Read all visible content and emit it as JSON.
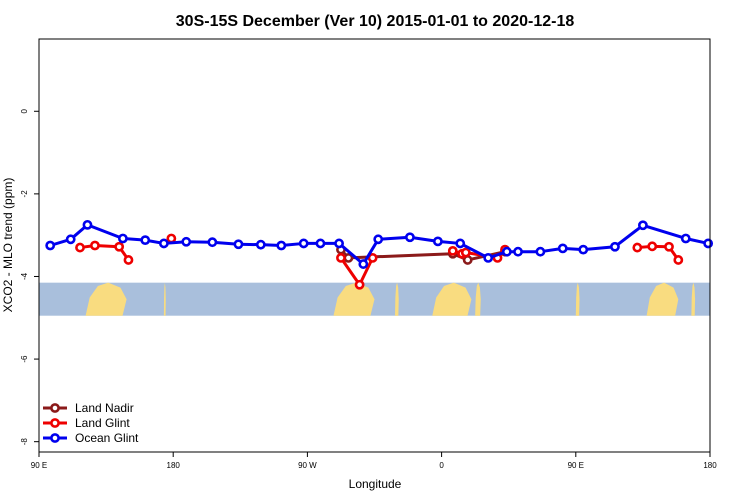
{
  "chart_data": {
    "type": "line",
    "title": "30S-15S December (Ver 10)   2015-01-01 to 2020-12-18",
    "xlabel": "Longitude",
    "ylabel": "XCO2 - MLO trend (ppm)",
    "xlim": [
      90,
      450
    ],
    "ylim": [
      -8.25,
      1.75
    ],
    "x_ticks": [
      90,
      162,
      234,
      306,
      378,
      450
    ],
    "x_tick_labels": [
      "90 E",
      "180",
      "90 W",
      "0",
      "90 E",
      "180"
    ],
    "y_ticks": [
      0,
      -2,
      -4,
      -6,
      -8
    ],
    "y_tick_labels": [
      "0",
      "-2",
      "-4",
      "-6",
      "-8"
    ],
    "grid": false,
    "legend_position": "bottom-left",
    "map_band": {
      "y_range": [
        -4.15,
        -4.95
      ],
      "ocean_color": "#a9bfdc",
      "land_color": "#f9dc80"
    },
    "series": [
      {
        "name": "Land Nadir",
        "color": "#8b1a1a",
        "x": [
          252,
          256,
          312,
          320,
          340
        ],
        "y": [
          -3.35,
          -3.55,
          -3.45,
          -3.6,
          -3.4
        ]
      },
      {
        "name": "Land Glint",
        "color": "#ee0000",
        "segments": [
          {
            "x": [
              112,
              120,
              133,
              138
            ],
            "y": [
              -3.3,
              -3.25,
              -3.28,
              -3.6
            ]
          },
          {
            "x": [
              161
            ],
            "y": [
              -3.08
            ]
          },
          {
            "x": [
              252,
              262,
              269
            ],
            "y": [
              -3.55,
              -4.2,
              -3.55
            ]
          },
          {
            "x": [
              312,
              317,
              319,
              336,
              340
            ],
            "y": [
              -3.38,
              -3.45,
              -3.42,
              -3.55,
              -3.35
            ]
          },
          {
            "x": [
              411,
              419,
              428,
              433
            ],
            "y": [
              -3.3,
              -3.27,
              -3.28,
              -3.6
            ]
          }
        ]
      },
      {
        "name": "Ocean Glint",
        "color": "#0000ee",
        "x": [
          96,
          107,
          116,
          135,
          147,
          157,
          169,
          183,
          197,
          209,
          220,
          232,
          241,
          251,
          264,
          272,
          289,
          304,
          316,
          331,
          341,
          347,
          359,
          371,
          382,
          399,
          414,
          437,
          449
        ],
        "y": [
          -3.25,
          -3.1,
          -2.75,
          -3.08,
          -3.12,
          -3.2,
          -3.16,
          -3.17,
          -3.22,
          -3.23,
          -3.25,
          -3.2,
          -3.2,
          -3.2,
          -3.7,
          -3.1,
          -3.05,
          -3.15,
          -3.2,
          -3.55,
          -3.4,
          -3.4,
          -3.4,
          -3.32,
          -3.35,
          -3.28,
          -2.76,
          -3.08,
          -3.2
        ]
      }
    ]
  }
}
